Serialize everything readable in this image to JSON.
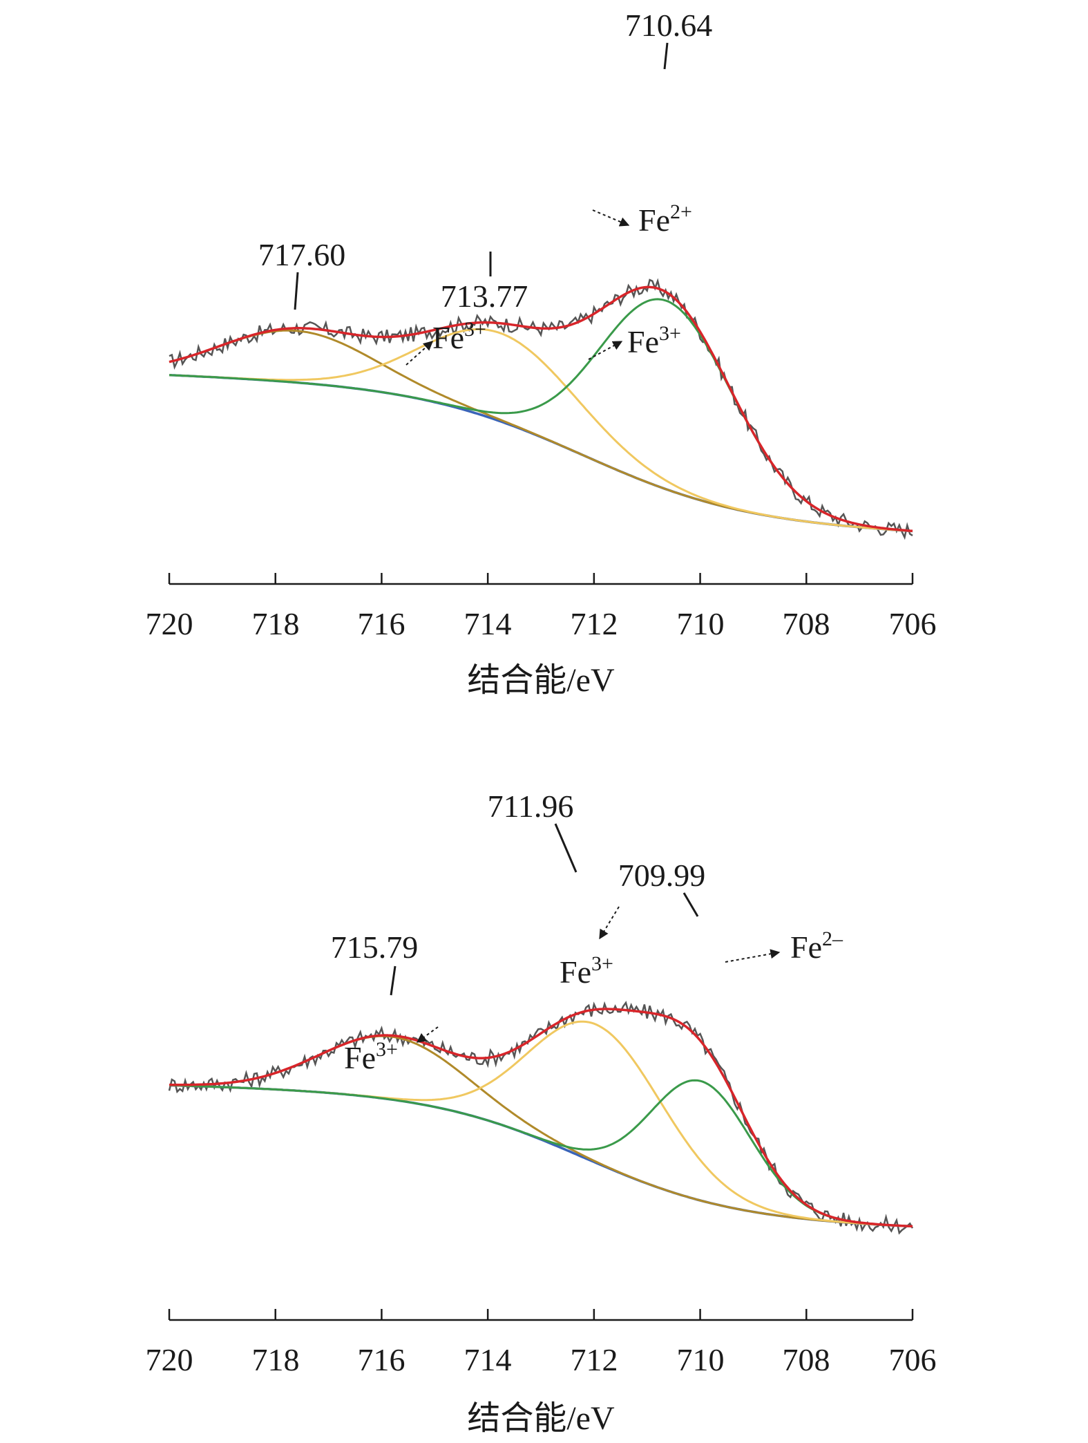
{
  "chart_data": [
    {
      "type": "line",
      "title": "",
      "xlabel": "结合能/eV",
      "ylabel": "",
      "xlim": [
        720,
        706
      ],
      "x_reversed": true,
      "x_ticks": [
        720,
        718,
        716,
        714,
        712,
        710,
        708,
        706
      ],
      "x_tick_labels": [
        "720",
        "718",
        "716",
        "714",
        "712",
        "710",
        "708",
        "706"
      ],
      "y_axis_shown": false,
      "grid": false,
      "series": [
        {
          "role": "raw",
          "color": "#555555"
        },
        {
          "role": "envelope",
          "color": "#d8252a"
        },
        {
          "role": "component",
          "species": "Fe3+",
          "peak": 717.6,
          "color": "#b08a2a"
        },
        {
          "role": "component",
          "species": "Fe3+",
          "peak": 713.77,
          "color": "#f0c860"
        },
        {
          "role": "component",
          "species": "Fe2+",
          "peak": 710.64,
          "color": "#3a9a4a"
        },
        {
          "role": "background",
          "color": "#3a64b8"
        }
      ],
      "peak_labels": [
        "717.60",
        "713.77",
        "710.64"
      ],
      "species_labels": [
        {
          "base": "Fe",
          "sup": "2+"
        },
        {
          "base": "Fe",
          "sup": "3+"
        },
        {
          "base": "Fe",
          "sup": "3+"
        }
      ]
    },
    {
      "type": "line",
      "title": "",
      "xlabel": "结合能/eV",
      "ylabel": "",
      "xlim": [
        720,
        706
      ],
      "x_reversed": true,
      "x_ticks": [
        720,
        718,
        716,
        714,
        712,
        710,
        708,
        706
      ],
      "x_tick_labels": [
        "720",
        "718",
        "716",
        "714",
        "712",
        "710",
        "708",
        "706"
      ],
      "y_axis_shown": false,
      "grid": false,
      "series": [
        {
          "role": "raw",
          "color": "#555555"
        },
        {
          "role": "envelope",
          "color": "#d8252a"
        },
        {
          "role": "component",
          "species": "Fe3+",
          "peak": 715.79,
          "color": "#b08a2a"
        },
        {
          "role": "component",
          "species": "Fe3+",
          "peak": 711.96,
          "color": "#f0c860"
        },
        {
          "role": "component",
          "species": "Fe2-",
          "peak": 709.99,
          "color": "#3a9a4a"
        },
        {
          "role": "background",
          "color": "#3a64b8"
        }
      ],
      "peak_labels": [
        "715.79",
        "711.96",
        "709.99"
      ],
      "species_labels": [
        {
          "base": "Fe",
          "sup": "3+"
        },
        {
          "base": "Fe",
          "sup": "3+"
        },
        {
          "base": "Fe",
          "sup": "2–"
        }
      ]
    }
  ]
}
